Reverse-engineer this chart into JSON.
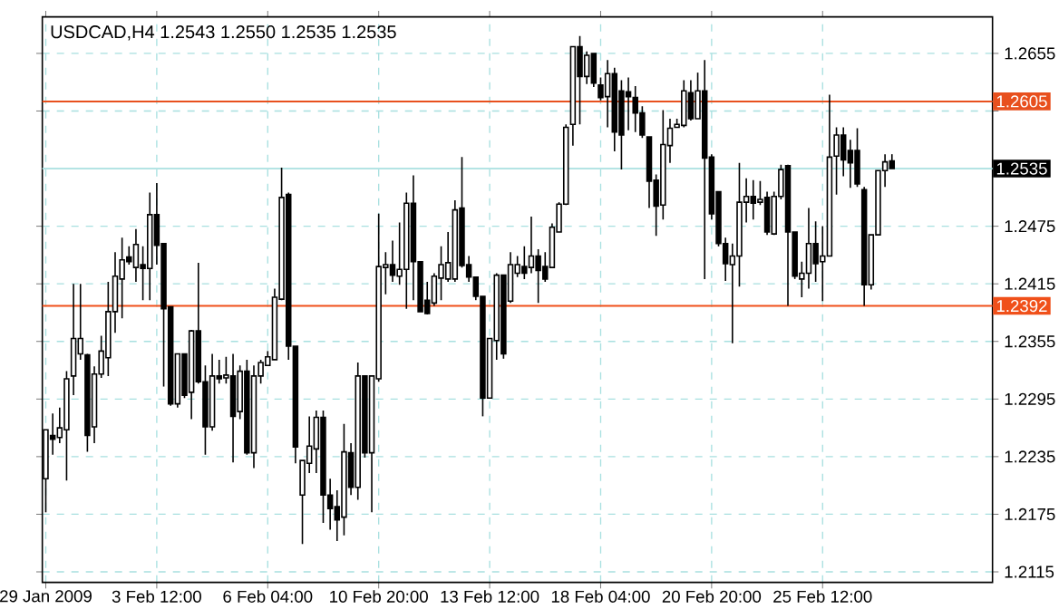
{
  "chart_data": {
    "type": "candlestick",
    "title": "USDCAD,H4  1.2543 1.2550 1.2535 1.2535",
    "categories": [
      "29 Jan 2009",
      null,
      null,
      null,
      null,
      null,
      null,
      null,
      null,
      null,
      null,
      null,
      null,
      null,
      null,
      null,
      "3 Feb 12:00",
      null,
      null,
      null,
      null,
      null,
      null,
      null,
      null,
      null,
      null,
      null,
      null,
      null,
      null,
      null,
      "6 Feb 04:00",
      null,
      null,
      null,
      null,
      null,
      null,
      null,
      null,
      null,
      null,
      null,
      null,
      null,
      null,
      null,
      "10 Feb 20:00",
      null,
      null,
      null,
      null,
      null,
      null,
      null,
      null,
      null,
      null,
      null,
      null,
      null,
      null,
      null,
      "13 Feb 12:00",
      null,
      null,
      null,
      null,
      null,
      null,
      null,
      null,
      null,
      null,
      null,
      null,
      null,
      null,
      null,
      "18 Feb 04:00",
      null,
      null,
      null,
      null,
      null,
      null,
      null,
      null,
      null,
      null,
      null,
      null,
      null,
      null,
      null,
      "20 Feb 20:00",
      null,
      null,
      null,
      null,
      null,
      null,
      null,
      null,
      null,
      null,
      null,
      null,
      null,
      null,
      null,
      "25 Feb 12:00",
      null,
      null,
      null,
      null,
      null,
      null,
      null,
      null,
      null,
      null,
      null,
      null,
      null,
      null,
      null,
      null,
      null,
      null,
      null,
      null,
      null,
      null,
      null,
      null
    ],
    "color": "#000000",
    "ohlc": [
      [
        1.2212,
        1.2263,
        1.2177,
        1.2263
      ],
      [
        1.2257,
        1.228,
        1.2237,
        1.2253
      ],
      [
        1.2255,
        1.2286,
        1.2249,
        1.2265
      ],
      [
        1.2263,
        1.2324,
        1.221,
        1.2316
      ],
      [
        1.2319,
        1.2415,
        1.2299,
        1.2358
      ],
      [
        1.2342,
        1.2415,
        1.2336,
        1.2358
      ],
      [
        1.2341,
        1.2342,
        1.224,
        1.2257
      ],
      [
        1.2266,
        1.2329,
        1.2249,
        1.2321
      ],
      [
        1.2321,
        1.2361,
        1.2317,
        1.2345
      ],
      [
        1.2338,
        1.2417,
        1.2319,
        1.2386
      ],
      [
        1.2386,
        1.2448,
        1.2364,
        1.2423
      ],
      [
        1.242,
        1.2463,
        1.2379,
        1.244
      ],
      [
        1.2443,
        1.2454,
        1.2435,
        1.2438
      ],
      [
        1.2432,
        1.2472,
        1.2417,
        1.2456
      ],
      [
        1.2435,
        1.2454,
        1.2398,
        1.2431
      ],
      [
        1.2431,
        1.251,
        1.2398,
        1.2487
      ],
      [
        1.2487,
        1.252,
        1.2435,
        1.2455
      ],
      [
        1.2457,
        1.2457,
        1.2308,
        1.2389
      ],
      [
        1.2391,
        1.2391,
        1.2288,
        1.229
      ],
      [
        1.229,
        1.2342,
        1.2286,
        1.2342
      ],
      [
        1.2342,
        1.2342,
        1.2296,
        1.2299
      ],
      [
        1.2302,
        1.2367,
        1.2274,
        1.2366
      ],
      [
        1.2366,
        1.2437,
        1.2311,
        1.2313
      ],
      [
        1.2313,
        1.233,
        1.2237,
        1.2266
      ],
      [
        1.2266,
        1.2342,
        1.2262,
        1.2319
      ],
      [
        1.2319,
        1.2336,
        1.2311,
        1.2316
      ],
      [
        1.2317,
        1.2339,
        1.2311,
        1.232
      ],
      [
        1.2319,
        1.2342,
        1.2229,
        1.2277
      ],
      [
        1.2282,
        1.233,
        1.2274,
        1.2324
      ],
      [
        1.2324,
        1.2336,
        1.2237,
        1.2239
      ],
      [
        1.2239,
        1.233,
        1.2223,
        1.2319
      ],
      [
        1.2319,
        1.2336,
        1.2311,
        1.2333
      ],
      [
        1.233,
        1.2345,
        1.233,
        1.2339
      ],
      [
        1.2336,
        1.241,
        1.2336,
        1.2401
      ],
      [
        1.2399,
        1.2536,
        1.2398,
        1.2505
      ],
      [
        1.2508,
        1.251,
        1.2336,
        1.235
      ],
      [
        1.235,
        1.235,
        1.2228,
        1.2245
      ],
      [
        1.2195,
        1.2231,
        1.2144,
        1.2231
      ],
      [
        1.2228,
        1.2277,
        1.2218,
        1.2246
      ],
      [
        1.2243,
        1.2283,
        1.2218,
        1.2276
      ],
      [
        1.2276,
        1.2283,
        1.2166,
        1.2195
      ],
      [
        1.2195,
        1.2212,
        1.2159,
        1.2181
      ],
      [
        1.2183,
        1.22,
        1.2147,
        1.2169
      ],
      [
        1.2172,
        1.2269,
        1.2153,
        1.224
      ],
      [
        1.2239,
        1.2249,
        1.2195,
        1.2203
      ],
      [
        1.2203,
        1.2333,
        1.219,
        1.2319
      ],
      [
        1.2319,
        1.2319,
        1.2234,
        1.2239
      ],
      [
        1.2239,
        1.2319,
        1.2177,
        1.2319
      ],
      [
        1.2316,
        1.2488,
        1.2313,
        1.2433
      ],
      [
        1.2432,
        1.2448,
        1.2404,
        1.2435
      ],
      [
        1.2435,
        1.246,
        1.2417,
        1.2424
      ],
      [
        1.2423,
        1.2479,
        1.2414,
        1.243
      ],
      [
        1.243,
        1.251,
        1.2389,
        1.2499
      ],
      [
        1.2499,
        1.2528,
        1.2398,
        1.2438
      ],
      [
        1.2438,
        1.2438,
        1.2386,
        1.2386
      ],
      [
        1.2398,
        1.2417,
        1.2383,
        1.2384
      ],
      [
        1.2395,
        1.2426,
        1.2392,
        1.2423
      ],
      [
        1.2421,
        1.2454,
        1.2398,
        1.2435
      ],
      [
        1.242,
        1.2469,
        1.2417,
        1.2437
      ],
      [
        1.242,
        1.2502,
        1.2417,
        1.2492
      ],
      [
        1.2494,
        1.2547,
        1.2432,
        1.2434
      ],
      [
        1.2435,
        1.2444,
        1.2417,
        1.2422
      ],
      [
        1.2422,
        1.2422,
        1.2398,
        1.2402
      ],
      [
        1.2402,
        1.2402,
        1.2277,
        1.2296
      ],
      [
        1.2296,
        1.2358,
        1.2296,
        1.2358
      ],
      [
        1.2356,
        1.2426,
        1.2336,
        1.2424
      ],
      [
        1.2424,
        1.2424,
        1.2337,
        1.2342
      ],
      [
        1.2397,
        1.2448,
        1.2395,
        1.2435
      ],
      [
        1.2426,
        1.2444,
        1.2422,
        1.2435
      ],
      [
        1.2433,
        1.2454,
        1.242,
        1.2426
      ],
      [
        1.2432,
        1.2485,
        1.2426,
        1.2444
      ],
      [
        1.2444,
        1.2451,
        1.2395,
        1.2429
      ],
      [
        1.2433,
        1.2448,
        1.2417,
        1.242
      ],
      [
        1.2432,
        1.2478,
        1.2432,
        1.2474
      ],
      [
        1.2469,
        1.25,
        1.2469,
        1.2498
      ],
      [
        1.2498,
        1.2581,
        1.2497,
        1.2578
      ],
      [
        1.2581,
        1.2662,
        1.2559,
        1.2662
      ],
      [
        1.2662,
        1.2673,
        1.2581,
        1.2631
      ],
      [
        1.2631,
        1.2657,
        1.2623,
        1.2653
      ],
      [
        1.2655,
        1.2655,
        1.262,
        1.2624
      ],
      [
        1.2622,
        1.263,
        1.2606,
        1.2609
      ],
      [
        1.261,
        1.2648,
        1.2578,
        1.2634
      ],
      [
        1.2634,
        1.264,
        1.2553,
        1.2573
      ],
      [
        1.2616,
        1.2627,
        1.2534,
        1.257
      ],
      [
        1.2615,
        1.263,
        1.2575,
        1.261
      ],
      [
        1.2609,
        1.2621,
        1.2573,
        1.2593
      ],
      [
        1.2593,
        1.26,
        1.2567,
        1.257
      ],
      [
        1.2568,
        1.2568,
        1.2494,
        1.2522
      ],
      [
        1.2523,
        1.2529,
        1.2465,
        1.2496
      ],
      [
        1.2497,
        1.2596,
        1.2482,
        1.256
      ],
      [
        1.2559,
        1.2587,
        1.2541,
        1.2577
      ],
      [
        1.2578,
        1.2587,
        1.2578,
        1.2581
      ],
      [
        1.258,
        1.2627,
        1.2578,
        1.2616
      ],
      [
        1.2614,
        1.2627,
        1.2585,
        1.2587
      ],
      [
        1.2587,
        1.2635,
        1.2587,
        1.2616
      ],
      [
        1.2616,
        1.2648,
        1.242,
        1.2546
      ],
      [
        1.2547,
        1.255,
        1.2482,
        1.2488
      ],
      [
        1.2511,
        1.2511,
        1.2454,
        1.2457
      ],
      [
        1.2457,
        1.2463,
        1.2418,
        1.2436
      ],
      [
        1.2435,
        1.2457,
        1.2353,
        1.2444
      ],
      [
        1.2444,
        1.2541,
        1.2412,
        1.25
      ],
      [
        1.25,
        1.2525,
        1.2479,
        1.2506
      ],
      [
        1.2506,
        1.2523,
        1.2482,
        1.2499
      ],
      [
        1.25,
        1.2522,
        1.2497,
        1.2503
      ],
      [
        1.2505,
        1.2511,
        1.2466,
        1.2469
      ],
      [
        1.2467,
        1.2511,
        1.2466,
        1.2506
      ],
      [
        1.2506,
        1.2539,
        1.2503,
        1.2534
      ],
      [
        1.2538,
        1.2539,
        1.2392,
        1.2469
      ],
      [
        1.2469,
        1.2469,
        1.242,
        1.2423
      ],
      [
        1.242,
        1.2438,
        1.2401,
        1.2426
      ],
      [
        1.2426,
        1.2494,
        1.241,
        1.2457
      ],
      [
        1.2457,
        1.248,
        1.2417,
        1.2436
      ],
      [
        1.2438,
        1.2475,
        1.2397,
        1.2444
      ],
      [
        1.2444,
        1.2612,
        1.2444,
        1.2547
      ],
      [
        1.2548,
        1.2578,
        1.2508,
        1.257
      ],
      [
        1.257,
        1.2578,
        1.2527,
        1.2544
      ],
      [
        1.2554,
        1.2565,
        1.2515,
        1.2541
      ],
      [
        1.2554,
        1.2577,
        1.2516,
        1.2519
      ],
      [
        1.2513,
        1.2516,
        1.2392,
        1.2414
      ],
      [
        1.2414,
        1.2466,
        1.2409,
        1.2466
      ],
      [
        1.2466,
        1.2533,
        1.2466,
        1.2533
      ],
      [
        1.2533,
        1.255,
        1.2516,
        1.2542
      ],
      [
        1.2543,
        1.255,
        1.2535,
        1.2535
      ],
      null,
      null,
      null,
      null,
      null,
      null,
      null,
      null,
      null,
      null,
      null,
      null,
      null,
      null
    ],
    "ylim": [
      1.2104,
      1.2693
    ],
    "yticks": [
      1.2115,
      1.2175,
      1.2235,
      1.2295,
      1.2355,
      1.2415,
      1.2475,
      {
        "value": 1.2595,
        "label": null
      },
      1.2655
    ],
    "grid": true,
    "ref_lines": [
      {
        "axis": "y",
        "value": 1.2605,
        "label": "1.2605",
        "color": "#e8501e"
      },
      {
        "axis": "y",
        "value": 1.2392,
        "label": "1.2392",
        "color": "#f0501a"
      },
      {
        "axis": "y",
        "value": 1.2535,
        "label": "1.2535",
        "color": "#b4e4e4"
      }
    ]
  }
}
